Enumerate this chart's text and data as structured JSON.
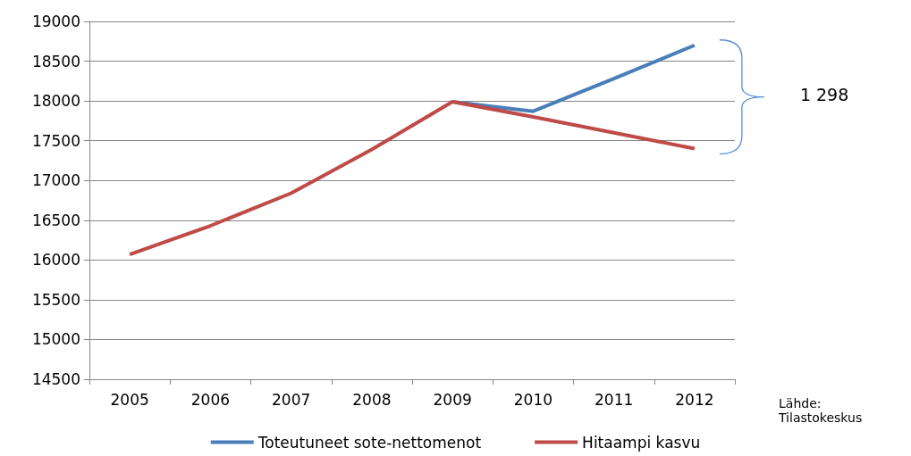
{
  "chart_data": {
    "type": "line",
    "categories": [
      "2005",
      "2006",
      "2007",
      "2008",
      "2009",
      "2010",
      "2011",
      "2012"
    ],
    "series": [
      {
        "name": "Toteutuneet sote-nettomenot",
        "color": "#4a7ebb",
        "values": [
          null,
          null,
          null,
          null,
          17990,
          17870,
          18280,
          18700
        ]
      },
      {
        "name": "Hitaampi kasvu",
        "color": "#be4b48",
        "values": [
          16070,
          16430,
          16840,
          17390,
          17990,
          17800,
          17600,
          17400
        ]
      }
    ],
    "ylim": [
      14500,
      19000
    ],
    "yticks": [
      14500,
      15000,
      15500,
      16000,
      16500,
      17000,
      17500,
      18000,
      18500,
      19000
    ],
    "grid": "y",
    "legend": "bottom",
    "marker": "none",
    "line_style": "solid",
    "annotations": [
      "1 298",
      "Lähde: Tilastokeskus"
    ]
  }
}
